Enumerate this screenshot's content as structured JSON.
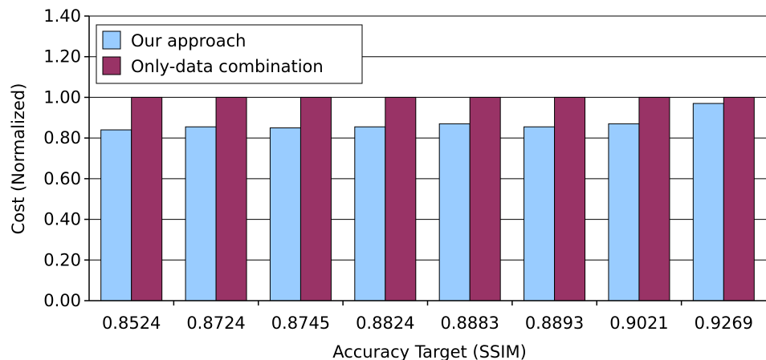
{
  "chart_data": {
    "type": "bar",
    "title": "",
    "xlabel": "Accuracy Target (SSIM)",
    "ylabel": "Cost (Normalized)",
    "categories": [
      "0.8524",
      "0.8724",
      "0.8745",
      "0.8824",
      "0.8883",
      "0.8893",
      "0.9021",
      "0.9269"
    ],
    "series": [
      {
        "name": "Our approach",
        "color": "#99ccff",
        "values": [
          0.84,
          0.855,
          0.85,
          0.855,
          0.87,
          0.855,
          0.87,
          0.97
        ]
      },
      {
        "name": "Only-data combination",
        "color": "#993366",
        "values": [
          1.0,
          1.0,
          1.0,
          1.0,
          1.0,
          1.0,
          1.0,
          1.0
        ]
      }
    ],
    "ylim": [
      0,
      1.4
    ],
    "yticks": [
      "0.00",
      "0.20",
      "0.40",
      "0.60",
      "0.80",
      "1.00",
      "1.20",
      "1.40"
    ],
    "grid": true,
    "legend_position": "top-left"
  }
}
